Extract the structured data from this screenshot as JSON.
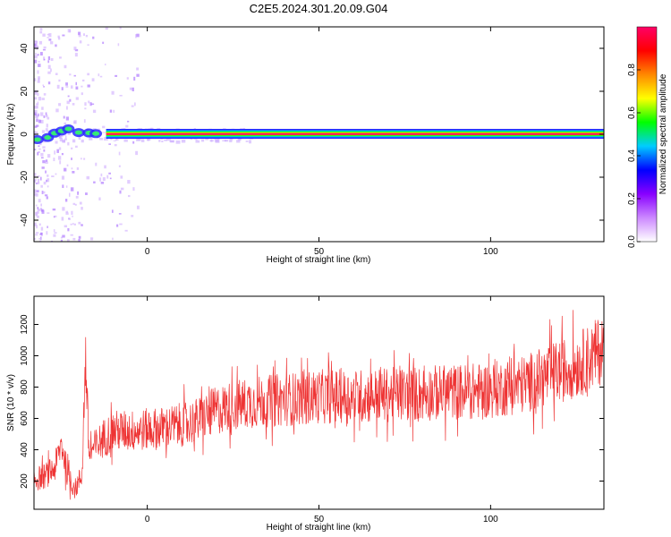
{
  "title": "C2E5.2024.301.20.09.G04",
  "colors": {
    "snr_line": "#ee3333",
    "background": "#ffffff",
    "axis": "#000000"
  },
  "chart_data": [
    {
      "type": "heatmap",
      "xlabel": "Height of straight line (km)",
      "ylabel": "Frequency (Hz)",
      "xlim": [
        -33,
        133
      ],
      "ylim": [
        -50,
        50
      ],
      "xticks": [
        0,
        50,
        100
      ],
      "yticks": [
        -40,
        -20,
        0,
        20,
        40
      ],
      "grid": false,
      "colorbar": {
        "label": "Normalized spectral amplitude",
        "range": [
          0,
          1
        ],
        "ticks": [
          "0.0",
          "0.2",
          "0.4",
          "0.6",
          "0.8"
        ],
        "ticks_values": [
          0.0,
          0.2,
          0.4,
          0.6,
          0.8
        ],
        "colormap": [
          "#ffffff",
          "#cc88ff",
          "#8800ff",
          "#0000ff",
          "#00ccff",
          "#00ff00",
          "#ffff00",
          "#ff8800",
          "#ff0000",
          "#ff0066"
        ]
      },
      "signal_band": {
        "frequency_hz": 0,
        "amplitude": 1.0,
        "start_km": -12,
        "end_km": 133
      }
    },
    {
      "type": "line",
      "xlabel": "Height of straight line (km)",
      "ylabel": "SNR (10 * v/v)",
      "xlim": [
        -33,
        133
      ],
      "ylim": [
        20,
        1380
      ],
      "xticks": [
        0,
        50,
        100
      ],
      "yticks": [
        200,
        400,
        600,
        800,
        1000,
        1200
      ],
      "grid": false,
      "series": [
        {
          "x": [
            -33,
            -30,
            -27,
            -25,
            -23,
            -21,
            -19,
            -18,
            -17,
            -15,
            -13,
            -10,
            -5,
            0,
            5,
            10,
            15,
            20,
            25,
            30,
            40,
            50,
            60,
            70,
            80,
            90,
            100,
            110,
            115,
            120,
            125,
            130,
            133
          ],
          "y": [
            210,
            230,
            280,
            440,
            220,
            150,
            240,
            1000,
            380,
            420,
            470,
            520,
            520,
            530,
            540,
            560,
            590,
            650,
            680,
            700,
            720,
            740,
            740,
            750,
            760,
            770,
            780,
            820,
            860,
            900,
            940,
            1000,
            1060
          ]
        }
      ]
    }
  ]
}
